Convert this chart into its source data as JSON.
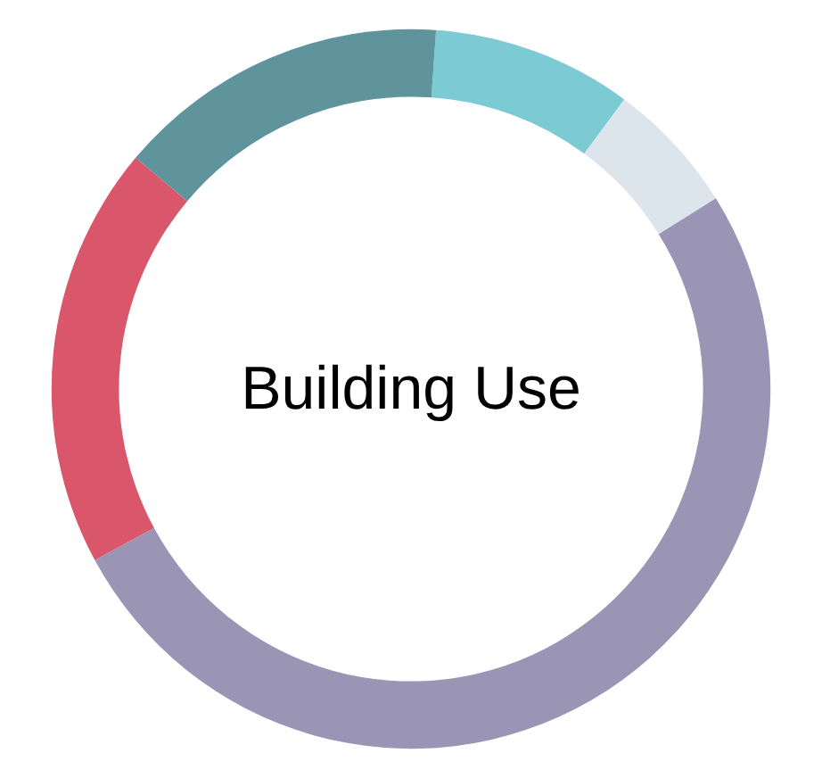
{
  "chart_data": {
    "type": "donut",
    "title": "Building Use",
    "categories": [
      null,
      null,
      null,
      null,
      null
    ],
    "values": [
      9,
      6,
      51,
      19,
      15
    ],
    "colors": [
      "#7ccad3",
      "#dde5ec",
      "#9a95b5",
      "#d9566b",
      "#5f949c"
    ]
  }
}
